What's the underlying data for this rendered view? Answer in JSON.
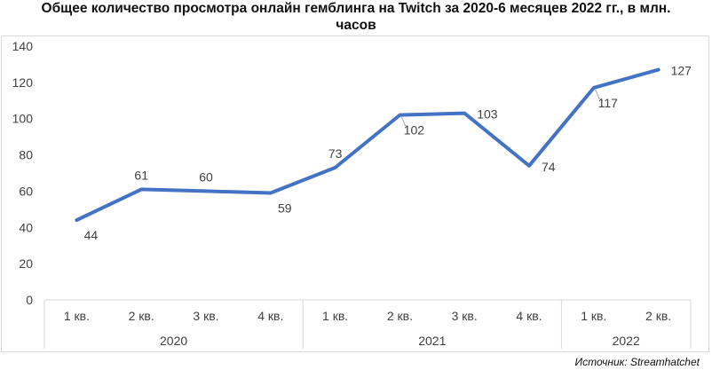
{
  "title_line1": "Общее количество просмотра онлайн гемблинга на Twitch за 2020-6 месяцев 2022 гг., в млн.",
  "title_line2": "часов",
  "source": "Источник: Streamhatchet",
  "colors": {
    "line": "#4472c4",
    "axis": "#d9d9d9",
    "text": "#404040"
  },
  "chart_data": {
    "type": "line",
    "categories": [
      "1 кв.",
      "2 кв.",
      "3 кв.",
      "4 кв.",
      "1 кв.",
      "2 кв.",
      "3 кв.",
      "4 кв.",
      "1 кв.",
      "2 кв."
    ],
    "groups": [
      {
        "label": "2020",
        "count": 4
      },
      {
        "label": "2021",
        "count": 4
      },
      {
        "label": "2022",
        "count": 2
      }
    ],
    "values": [
      44,
      61,
      60,
      59,
      73,
      102,
      103,
      74,
      117,
      127
    ],
    "ylim": [
      0,
      140
    ],
    "yticks": [
      0,
      20,
      40,
      60,
      80,
      100,
      120,
      140
    ],
    "grid": false
  }
}
